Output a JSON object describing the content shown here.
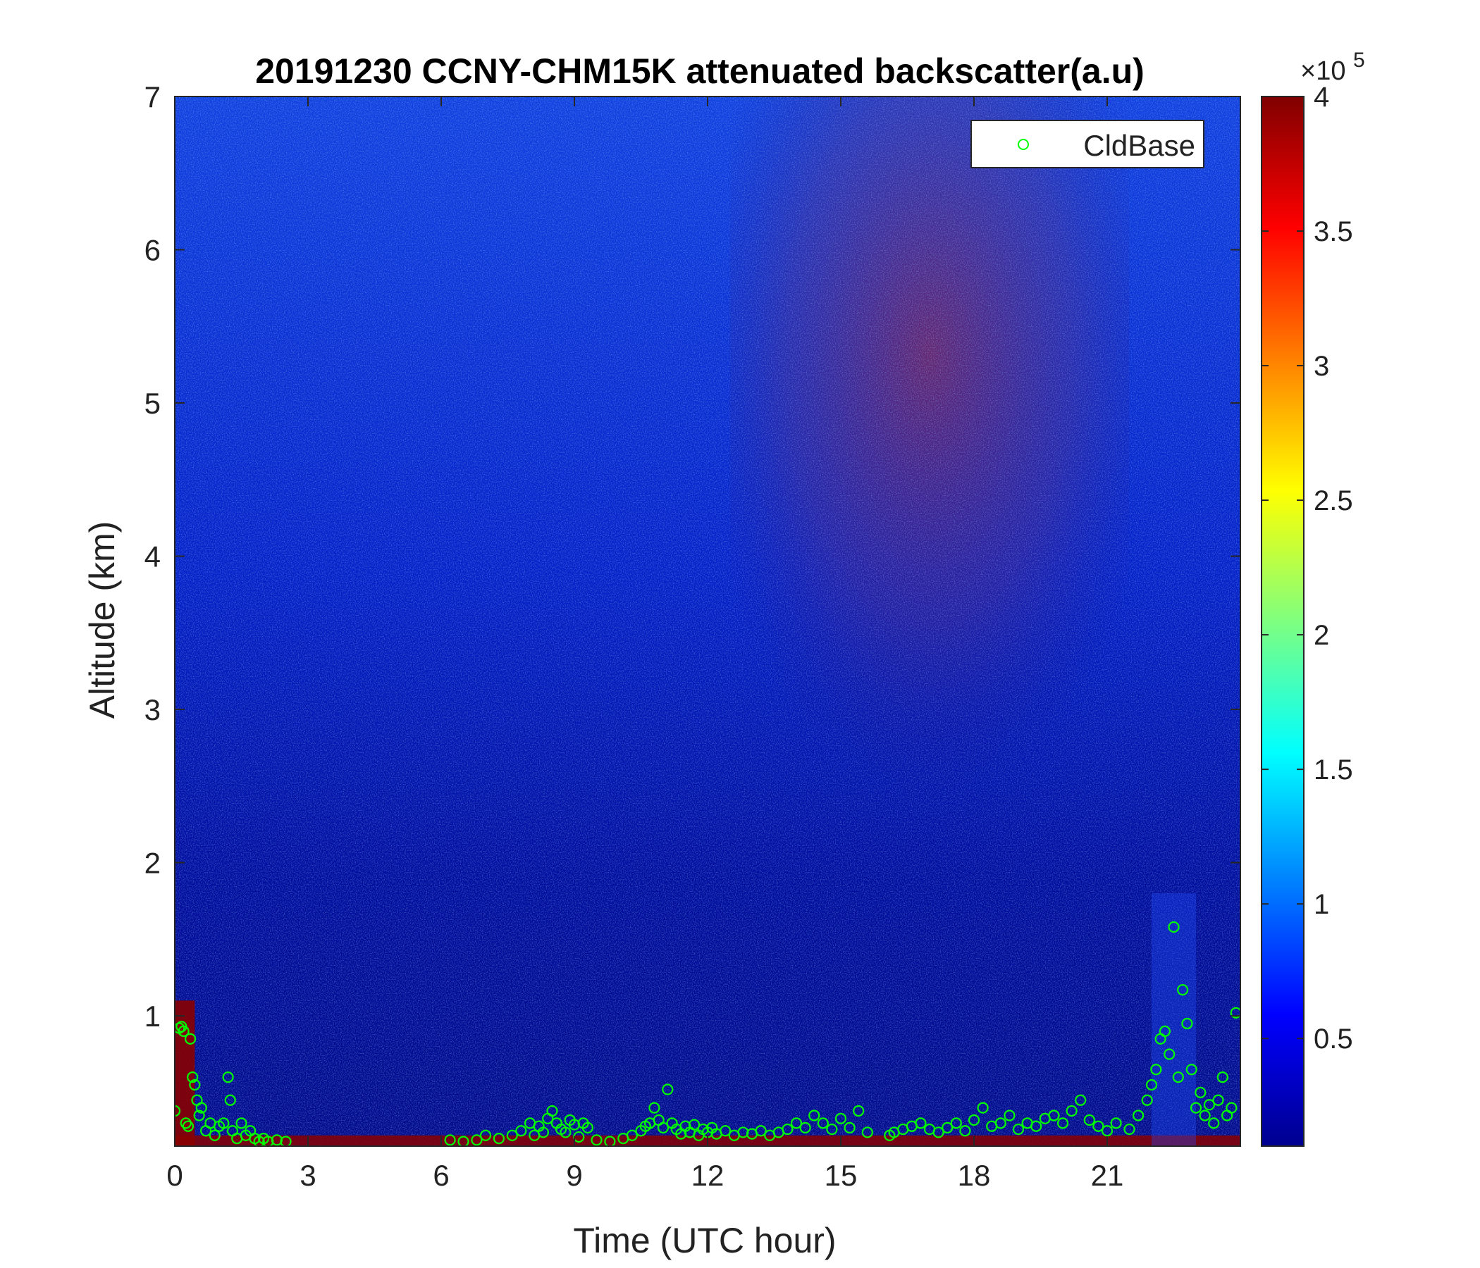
{
  "chart_data": {
    "type": "heatmap",
    "title": "20191230 CCNY-CHM15K attenuated backscatter(a.u)",
    "xlabel": "Time (UTC hour)",
    "ylabel": "Altitude (km)",
    "xlim": [
      0,
      24
    ],
    "ylim": [
      0.15,
      7
    ],
    "xticks": [
      0,
      3,
      6,
      9,
      12,
      15,
      18,
      21
    ],
    "xtick_labels": [
      "0",
      "3",
      "6",
      "9",
      "12",
      "15",
      "18",
      "21"
    ],
    "yticks": [
      1,
      2,
      3,
      4,
      5,
      6,
      7
    ],
    "ytick_labels": [
      "1",
      "2",
      "3",
      "4",
      "5",
      "6",
      "7"
    ],
    "colorbar": {
      "colormap": "jet",
      "clim": [
        0.1,
        4
      ],
      "ticks": [
        0.5,
        1,
        1.5,
        2,
        2.5,
        3,
        3.5,
        4
      ],
      "tick_labels": [
        "0.5",
        "1",
        "1.5",
        "2",
        "2.5",
        "3",
        "3.5",
        "4"
      ],
      "multiplier_prefix": "×10",
      "multiplier_exponent": "5"
    },
    "legend": {
      "position": "top-right",
      "entries": [
        "CldBase"
      ]
    },
    "cloud_base_series": {
      "name": "CldBase",
      "color": "#00ff00",
      "marker": "circle",
      "x": [
        0.0,
        0.1,
        0.15,
        0.2,
        0.25,
        0.3,
        0.35,
        0.4,
        0.45,
        0.5,
        0.55,
        0.6,
        0.7,
        0.8,
        0.9,
        1.0,
        1.1,
        1.2,
        1.25,
        1.3,
        1.4,
        1.5,
        1.6,
        1.7,
        1.8,
        1.9,
        2.0,
        2.1,
        2.3,
        2.5,
        6.2,
        6.5,
        6.8,
        7.0,
        7.3,
        7.6,
        7.8,
        8.0,
        8.1,
        8.2,
        8.3,
        8.4,
        8.5,
        8.6,
        8.7,
        8.8,
        8.9,
        9.0,
        9.1,
        9.2,
        9.3,
        9.5,
        9.8,
        10.1,
        10.3,
        10.5,
        10.6,
        10.7,
        10.8,
        10.9,
        11.0,
        11.1,
        11.2,
        11.3,
        11.4,
        11.5,
        11.6,
        11.7,
        11.8,
        11.9,
        12.0,
        12.1,
        12.2,
        12.4,
        12.6,
        12.8,
        13.0,
        13.2,
        13.4,
        13.6,
        13.8,
        14.0,
        14.2,
        14.4,
        14.6,
        14.8,
        15.0,
        15.2,
        15.4,
        15.6,
        16.1,
        16.2,
        16.4,
        16.6,
        16.8,
        17.0,
        17.2,
        17.4,
        17.6,
        17.8,
        18.0,
        18.2,
        18.4,
        18.6,
        18.8,
        19.0,
        19.2,
        19.4,
        19.6,
        19.8,
        20.0,
        20.2,
        20.4,
        20.6,
        20.8,
        21.0,
        21.2,
        21.5,
        21.7,
        21.9,
        22.0,
        22.1,
        22.2,
        22.3,
        22.4,
        22.5,
        22.6,
        22.7,
        22.8,
        22.9,
        23.0,
        23.1,
        23.2,
        23.3,
        23.4,
        23.5,
        23.6,
        23.7,
        23.8,
        23.9
      ],
      "y": [
        0.38,
        0.92,
        0.93,
        0.9,
        0.3,
        0.28,
        0.85,
        0.6,
        0.55,
        0.45,
        0.35,
        0.4,
        0.25,
        0.3,
        0.22,
        0.28,
        0.3,
        0.6,
        0.45,
        0.25,
        0.2,
        0.3,
        0.22,
        0.25,
        0.2,
        0.18,
        0.2,
        0.18,
        0.19,
        0.18,
        0.19,
        0.18,
        0.19,
        0.22,
        0.2,
        0.22,
        0.25,
        0.3,
        0.22,
        0.28,
        0.24,
        0.33,
        0.38,
        0.3,
        0.26,
        0.24,
        0.32,
        0.29,
        0.21,
        0.3,
        0.27,
        0.19,
        0.18,
        0.2,
        0.22,
        0.25,
        0.28,
        0.3,
        0.4,
        0.32,
        0.27,
        0.52,
        0.3,
        0.26,
        0.23,
        0.28,
        0.24,
        0.29,
        0.22,
        0.26,
        0.24,
        0.27,
        0.23,
        0.25,
        0.22,
        0.24,
        0.23,
        0.25,
        0.22,
        0.24,
        0.26,
        0.3,
        0.27,
        0.35,
        0.3,
        0.26,
        0.33,
        0.27,
        0.38,
        0.24,
        0.22,
        0.24,
        0.26,
        0.28,
        0.3,
        0.26,
        0.24,
        0.27,
        0.3,
        0.25,
        0.32,
        0.4,
        0.28,
        0.3,
        0.35,
        0.26,
        0.3,
        0.28,
        0.33,
        0.35,
        0.3,
        0.38,
        0.45,
        0.32,
        0.28,
        0.25,
        0.3,
        0.26,
        0.35,
        0.45,
        0.55,
        0.65,
        0.85,
        0.9,
        0.75,
        1.58,
        0.6,
        1.17,
        0.95,
        0.65,
        0.4,
        0.5,
        0.35,
        0.42,
        0.3,
        0.45,
        0.6,
        0.35,
        0.4,
        1.02
      ]
    }
  }
}
